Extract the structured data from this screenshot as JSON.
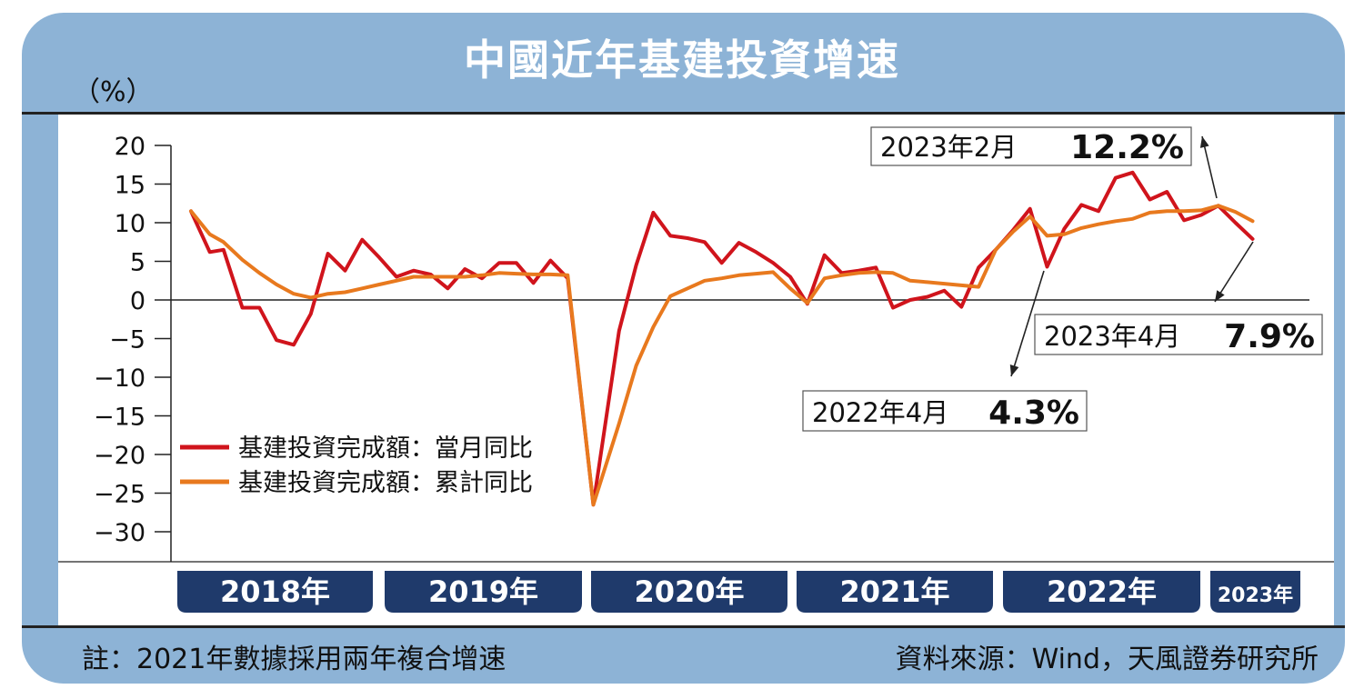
{
  "title": "中國近年基建投資增速",
  "unit": "（%）",
  "note": "註：2021年數據採用兩年複合增速",
  "source": "資料來源：Wind，天風證券研究所",
  "colors": {
    "frame": "#8db3d6",
    "monthly": "#d0141c",
    "cumulative": "#e8791e",
    "year_bar": "#1f3a6b"
  },
  "chart_data": {
    "type": "line",
    "ylim": [
      -30,
      20
    ],
    "yticks": [
      "20",
      "15",
      "10",
      "5",
      "0",
      "−5",
      "−10",
      "−15",
      "−20",
      "−25",
      "−30"
    ],
    "year_labels": [
      "2018年",
      "2019年",
      "2020年",
      "2021年",
      "2022年",
      "2023年"
    ],
    "legend": [
      "基建投資完成額：當月同比",
      "基建投資完成額：累計同比"
    ],
    "series": [
      {
        "name": "基建投資完成額：當月同比",
        "values": [
          11.5,
          6.2,
          6.5,
          -1,
          -1,
          -5.2,
          -5.8,
          -1.8,
          6,
          3.8,
          7.8,
          5.5,
          3,
          3.8,
          3.3,
          1.5,
          4,
          2.8,
          4.8,
          4.8,
          2.2,
          5.1,
          2.8,
          -26.5,
          -4,
          4.5,
          11.3,
          8.3,
          8,
          7.5,
          4.8,
          7.4,
          6.2,
          4.8,
          3,
          -0.5,
          5.8,
          3.5,
          3.8,
          4.2,
          -1,
          0,
          0.4,
          1.2,
          -0.9,
          4.2,
          6.5,
          9,
          11.8,
          4.3,
          9.2,
          12.3,
          11.5,
          15.8,
          16.5,
          13,
          14,
          10.3,
          11,
          12.2,
          10,
          7.9
        ]
      },
      {
        "name": "基建投資完成額：累計同比",
        "values": [
          11.5,
          8.5,
          7.5,
          5.2,
          3.5,
          2,
          0.8,
          0.3,
          0.8,
          1,
          1.5,
          2,
          2.5,
          3,
          3,
          3,
          3,
          3.2,
          3.5,
          3.4,
          3.3,
          3.3,
          3.2,
          -26.5,
          -16,
          -8.5,
          -3.5,
          0.5,
          1.5,
          2.5,
          2.8,
          3.2,
          3.4,
          3.6,
          1.5,
          -0.4,
          2.8,
          3.2,
          3.5,
          3.6,
          3.5,
          2.5,
          2.3,
          2.1,
          1.9,
          1.7,
          6.5,
          8.8,
          10.8,
          8.3,
          8.5,
          9.3,
          9.8,
          10.2,
          10.5,
          11.3,
          11.5,
          11.5,
          11.6,
          12.2,
          11.4,
          10.2
        ]
      }
    ],
    "x_month_index": [
      0,
      1.1,
      1.9,
      3,
      4,
      5,
      6,
      7,
      8,
      9,
      10,
      11,
      12,
      13,
      14,
      15,
      16,
      17,
      18,
      19,
      20,
      21,
      22,
      23.5,
      25,
      26,
      27,
      28,
      29,
      30,
      31,
      32,
      33,
      34,
      35,
      36,
      37,
      38,
      39,
      40,
      41,
      42,
      43,
      44,
      45,
      46,
      47,
      48,
      49,
      50,
      51,
      52,
      53,
      54,
      55,
      56,
      57,
      58,
      59,
      60,
      61,
      62
    ],
    "annotations": [
      {
        "label": "2023年2月",
        "value": "12.2%"
      },
      {
        "label": "2023年4月",
        "value": "7.9%"
      },
      {
        "label": "2022年4月",
        "value": "4.3%"
      }
    ]
  }
}
